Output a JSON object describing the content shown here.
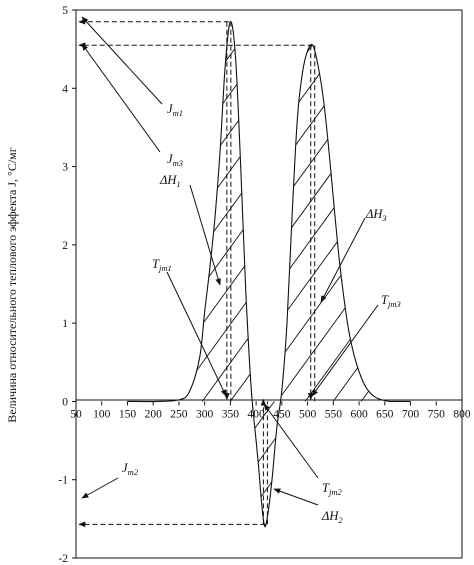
{
  "chart_data": {
    "type": "line",
    "title": "",
    "xlabel": "",
    "ylabel": "Величина относительного теплового эффекта J, °C/мг",
    "xlim": [
      50,
      800
    ],
    "ylim": [
      -2,
      5
    ],
    "xticks": [
      "50",
      "100",
      "150",
      "200",
      "250",
      "300",
      "350",
      "400",
      "450",
      "500",
      "550",
      "600",
      "650",
      "700",
      "750",
      "800"
    ],
    "yticks": [
      "-2",
      "-1",
      "0",
      "1",
      "2",
      "3",
      "4",
      "5"
    ],
    "grid": false,
    "series": [
      {
        "name": "",
        "x": [
          150,
          210,
          250,
          270,
          290,
          300,
          310,
          320,
          330,
          340,
          350,
          360,
          370,
          380,
          390,
          400,
          405,
          410,
          415,
          420,
          430,
          440,
          450,
          460,
          470,
          480,
          490,
          500,
          510,
          520,
          530,
          540,
          550,
          560,
          570,
          580,
          590,
          600,
          610,
          620,
          630,
          640,
          650,
          660,
          670,
          680,
          700
        ],
        "y": [
          0,
          0,
          0.02,
          0.12,
          0.55,
          1.15,
          1.7,
          2.35,
          3.2,
          4.3,
          4.85,
          4.4,
          3.0,
          1.4,
          0.2,
          -0.5,
          -0.85,
          -1.25,
          -1.55,
          -1.55,
          -1.05,
          -0.35,
          0.15,
          1.0,
          2.4,
          3.6,
          4.2,
          4.48,
          4.55,
          4.3,
          3.9,
          3.3,
          2.6,
          1.9,
          1.35,
          0.9,
          0.6,
          0.38,
          0.22,
          0.12,
          0.06,
          0.03,
          0.01,
          0,
          0,
          0,
          0
        ]
      }
    ],
    "annotations": {
      "jm1": {
        "base": "J",
        "sub": "m1"
      },
      "jm3": {
        "base": "J",
        "sub": "m3"
      },
      "jm2": {
        "base": "J",
        "sub": "m2"
      },
      "dh1": {
        "base": "ΔH",
        "sub": "1"
      },
      "dh2": {
        "base": "ΔH",
        "sub": "2"
      },
      "dh3": {
        "base": "ΔH",
        "sub": "3"
      },
      "tjm1": {
        "base": "T",
        "sub": "jm1"
      },
      "tjm2": {
        "base": "T",
        "sub": "jm2"
      },
      "tjm3": {
        "base": "T",
        "sub": "jm3"
      }
    },
    "peaks": [
      {
        "name": "peak1",
        "x": 347,
        "y": 4.85
      },
      {
        "name": "peak2",
        "x": 418,
        "y": -1.57
      },
      {
        "name": "peak3",
        "x": 510,
        "y": 4.55
      }
    ]
  }
}
